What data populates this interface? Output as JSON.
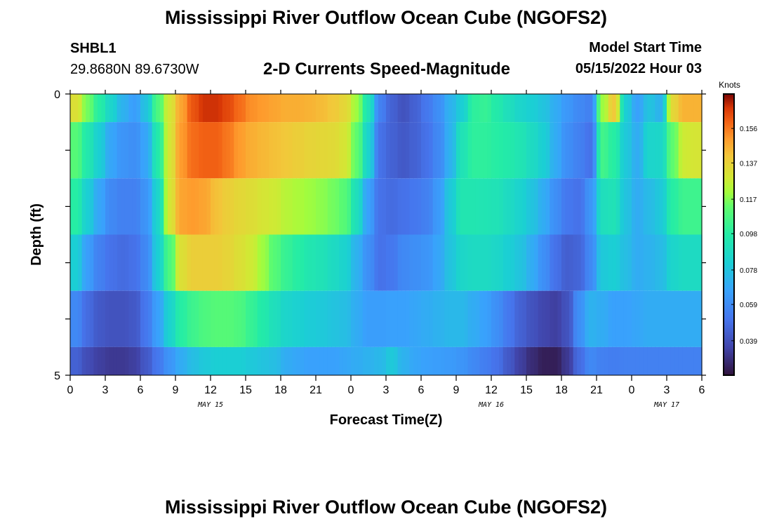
{
  "title": "Mississippi River Outflow Ocean Cube (NGOFS2)",
  "station": "SHBL1",
  "coordinates": "29.8680N  89.6730W",
  "subtitle": "2-D Currents Speed-Magnitude",
  "model_start_label": "Model Start Time",
  "model_start_value": "05/15/2022 Hour 03",
  "footer_title": "Mississippi River Outflow Ocean Cube (NGOFS2)",
  "chart_data": {
    "type": "heatmap",
    "xlabel": "Forecast Time(Z)",
    "ylabel": "Depth (ft)",
    "x_range_hours": [
      0,
      54
    ],
    "x_tick_labels": [
      "0",
      "3",
      "6",
      "9",
      "12",
      "15",
      "18",
      "21",
      "0",
      "3",
      "6",
      "9",
      "12",
      "15",
      "18",
      "21",
      "0",
      "3",
      "6"
    ],
    "date_labels": [
      {
        "label": "MAY 15",
        "hour": 12
      },
      {
        "label": "MAY 16",
        "hour": 36
      },
      {
        "label": "MAY 17",
        "hour": 51
      }
    ],
    "y_tick_labels": [
      "0",
      "5"
    ],
    "ylim": [
      0,
      5
    ],
    "depth_layers": 5,
    "colorbar": {
      "unit_label": "Knots",
      "range": [
        0.02,
        0.175
      ],
      "tick_labels": [
        "0.156",
        "0.137",
        "0.117",
        "0.098",
        "0.078",
        "0.059",
        "0.039"
      ],
      "tick_values": [
        0.156,
        0.137,
        0.117,
        0.098,
        0.078,
        0.059,
        0.039
      ]
    },
    "rows": [
      {
        "y0": 0.0,
        "y1": 0.5,
        "values": [
          0.132,
          0.115,
          0.098,
          0.085,
          0.072,
          0.065,
          0.078,
          0.108,
          0.13,
          0.148,
          0.162,
          0.168,
          0.168,
          0.164,
          0.158,
          0.152,
          0.15,
          0.148,
          0.146,
          0.146,
          0.145,
          0.143,
          0.14,
          0.135,
          0.12,
          0.092,
          0.055,
          0.045,
          0.04,
          0.045,
          0.052,
          0.06,
          0.072,
          0.082,
          0.1,
          0.102,
          0.096,
          0.09,
          0.085,
          0.082,
          0.078,
          0.07,
          0.063,
          0.058,
          0.055,
          0.12,
          0.14,
          0.082,
          0.066,
          0.078,
          0.072,
          0.135,
          0.145,
          0.145,
          0.145
        ]
      },
      {
        "y0": 0.5,
        "y1": 1.5,
        "values": [
          0.11,
          0.095,
          0.082,
          0.068,
          0.062,
          0.06,
          0.068,
          0.096,
          0.13,
          0.15,
          0.158,
          0.16,
          0.16,
          0.156,
          0.15,
          0.146,
          0.144,
          0.142,
          0.14,
          0.138,
          0.136,
          0.135,
          0.134,
          0.13,
          0.112,
          0.084,
          0.05,
          0.045,
          0.042,
          0.045,
          0.05,
          0.058,
          0.072,
          0.092,
          0.1,
          0.1,
          0.098,
          0.096,
          0.093,
          0.088,
          0.082,
          0.07,
          0.06,
          0.055,
          0.05,
          0.105,
          0.098,
          0.08,
          0.07,
          0.085,
          0.086,
          0.112,
          0.128,
          0.13,
          0.13
        ]
      },
      {
        "y0": 1.5,
        "y1": 2.5,
        "values": [
          0.098,
          0.082,
          0.068,
          0.058,
          0.055,
          0.055,
          0.062,
          0.085,
          0.13,
          0.148,
          0.15,
          0.148,
          0.142,
          0.138,
          0.135,
          0.133,
          0.13,
          0.128,
          0.124,
          0.122,
          0.12,
          0.118,
          0.115,
          0.11,
          0.09,
          0.066,
          0.05,
          0.048,
          0.05,
          0.052,
          0.055,
          0.064,
          0.08,
          0.094,
          0.094,
          0.093,
          0.092,
          0.088,
          0.084,
          0.078,
          0.07,
          0.06,
          0.052,
          0.05,
          0.062,
          0.09,
          0.092,
          0.078,
          0.07,
          0.075,
          0.08,
          0.098,
          0.104,
          0.104,
          0.104
        ]
      },
      {
        "y0": 2.5,
        "y1": 3.5,
        "values": [
          0.082,
          0.065,
          0.055,
          0.05,
          0.048,
          0.05,
          0.058,
          0.082,
          0.108,
          0.132,
          0.138,
          0.138,
          0.138,
          0.136,
          0.132,
          0.128,
          0.12,
          0.11,
          0.102,
          0.098,
          0.094,
          0.092,
          0.088,
          0.084,
          0.072,
          0.06,
          0.05,
          0.052,
          0.058,
          0.06,
          0.062,
          0.068,
          0.078,
          0.086,
          0.088,
          0.088,
          0.086,
          0.082,
          0.078,
          0.07,
          0.06,
          0.05,
          0.044,
          0.046,
          0.058,
          0.08,
          0.082,
          0.076,
          0.07,
          0.072,
          0.075,
          0.085,
          0.088,
          0.088,
          0.088
        ]
      },
      {
        "y0": 3.5,
        "y1": 4.5,
        "values": [
          0.058,
          0.048,
          0.042,
          0.04,
          0.04,
          0.042,
          0.052,
          0.066,
          0.084,
          0.098,
          0.104,
          0.108,
          0.11,
          0.11,
          0.108,
          0.102,
          0.096,
          0.09,
          0.085,
          0.083,
          0.081,
          0.08,
          0.078,
          0.076,
          0.07,
          0.065,
          0.065,
          0.066,
          0.066,
          0.068,
          0.07,
          0.072,
          0.074,
          0.074,
          0.07,
          0.066,
          0.06,
          0.052,
          0.045,
          0.04,
          0.036,
          0.034,
          0.04,
          0.06,
          0.072,
          0.07,
          0.066,
          0.066,
          0.068,
          0.07,
          0.07,
          0.07,
          0.07,
          0.07,
          0.07
        ]
      },
      {
        "y0": 4.5,
        "y1": 5.0,
        "values": [
          0.045,
          0.038,
          0.034,
          0.032,
          0.032,
          0.034,
          0.042,
          0.052,
          0.062,
          0.07,
          0.076,
          0.08,
          0.082,
          0.082,
          0.082,
          0.08,
          0.078,
          0.076,
          0.07,
          0.068,
          0.066,
          0.066,
          0.066,
          0.068,
          0.07,
          0.072,
          0.074,
          0.08,
          0.072,
          0.068,
          0.066,
          0.065,
          0.064,
          0.062,
          0.058,
          0.054,
          0.05,
          0.042,
          0.034,
          0.028,
          0.024,
          0.024,
          0.032,
          0.048,
          0.058,
          0.055,
          0.054,
          0.055,
          0.055,
          0.055,
          0.055,
          0.055,
          0.055,
          0.055,
          0.055
        ]
      }
    ]
  }
}
